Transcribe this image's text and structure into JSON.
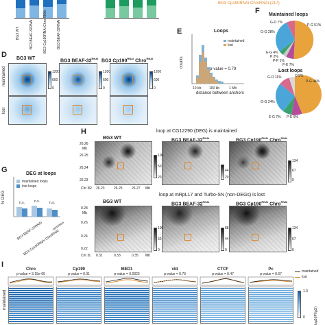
{
  "panel_letters": [
    "D",
    "E",
    "F",
    "G",
    "H",
    "I"
  ],
  "top_fragment": {
    "left_bar_labels": [
      "BG3 WT",
      "BG3 BEAF-32RNAi",
      "BG3 Cp190RNAi Chro RNAi",
      "BG3 BEAF-32RNAi"
    ],
    "orange_text": "BG3 Cp190RNAi ChroRNAi (217)",
    "colors": {
      "blue_dark": "#1f6fbf",
      "blue_light": "#7fb6e3",
      "green_dark": "#1e9b5e",
      "green_light": "#78c9a0"
    }
  },
  "panel_d": {
    "columns": [
      "BG3 WT",
      "BG3 BEAF-32",
      "BG3 Cp190",
      "Chro"
    ],
    "col_superscript": "RNAi",
    "rows": [
      "maintained",
      "lost"
    ],
    "colorbar_ticks": [
      "1200",
      "600",
      "0"
    ]
  },
  "panel_e": {
    "title": "Loops",
    "legend": [
      "maintained",
      "lost"
    ],
    "pvalue": "p-value = 0.79",
    "ylabel": "counts",
    "xlabel": "distance between anchors",
    "yticks": [
      "0",
      "10",
      "20",
      "30",
      "40",
      "50",
      "60"
    ],
    "xticks": [
      "10 kb",
      "100 kb",
      "1 Mb"
    ]
  },
  "panel_f": {
    "maintained_title": "Maintained loops",
    "lost_title": "Lost loops",
    "maintained_labels": [
      "G-O 7%",
      "P-G 51%",
      "G-G 28%",
      "E-G 4%",
      "P 2%",
      "P-P 1%",
      "P-E 7%"
    ],
    "lost_labels": [
      "G-O 11%",
      "O 5%",
      "P-G 44%",
      "G-G 24%",
      "E-G 7%",
      "P-E 9%"
    ]
  },
  "panel_g": {
    "title": "DEG at loops",
    "legend": [
      "maintained loops",
      "lost loops"
    ],
    "ylabel": "% DEG",
    "yticks": [
      "0",
      "10",
      "20",
      "30",
      "40",
      "50",
      "60"
    ],
    "significance": [
      "n.s.",
      "n.s.",
      "n.s."
    ],
    "categories": [
      "BG3 BEAF-32RNAi",
      "BG3 Cp190RNAi ChroRNAi",
      "common"
    ]
  },
  "panel_h": {
    "title_top": "loop at CG12290 (DEG) is maintained",
    "title_bottom": "loop at mRpL17 and Turbo-SN (non-DEGs) is lost",
    "columns": [
      "BG3 WT",
      "BG3 BEAF-32",
      "BG3 Cp190",
      "Chro"
    ],
    "col_superscript": "RNAi",
    "top_yticks": [
      "26.26",
      "Mb",
      "26.25",
      "26.24",
      "26.23"
    ],
    "top_xticks": [
      "Chr 3R",
      "26.23",
      "26.25",
      "26.27",
      "Mb"
    ],
    "bottom_yticks": [
      "0.28",
      "Mb",
      "0.26",
      "0.24",
      "0.22"
    ],
    "bottom_xticks": [
      "Chr 3L",
      "0.31",
      "0.33",
      "0.35",
      "Mb"
    ],
    "cbar_top_1": [
      "100",
      "50",
      "20"
    ],
    "cbar_top_2": [
      "44",
      "20"
    ],
    "cbar_top_3": [
      "134",
      "67",
      "0"
    ],
    "cbar_bot_1": [
      "100",
      "50",
      "0"
    ],
    "cbar_bot_2": [
      "88",
      "44",
      "0"
    ],
    "cbar_bot_3": [
      "134",
      "67",
      "0"
    ]
  },
  "panel_i": {
    "tracks": [
      "Chro",
      "Cp190",
      "MED1",
      "vtd",
      "CTCF",
      "Pc"
    ],
    "pvalues": [
      "p-value = 3.15e-05",
      "p-value = 0.01",
      "p-value = 0.0023",
      "p-value = 0.79",
      "p-value = 0.47",
      "p-value = 0.67"
    ],
    "legend": [
      "maintained",
      "lost"
    ],
    "row_label": "maintained",
    "cbar_ticks": [
      "1.0",
      "0"
    ],
    "cbar_label": "log2(IP/IgG)"
  }
}
